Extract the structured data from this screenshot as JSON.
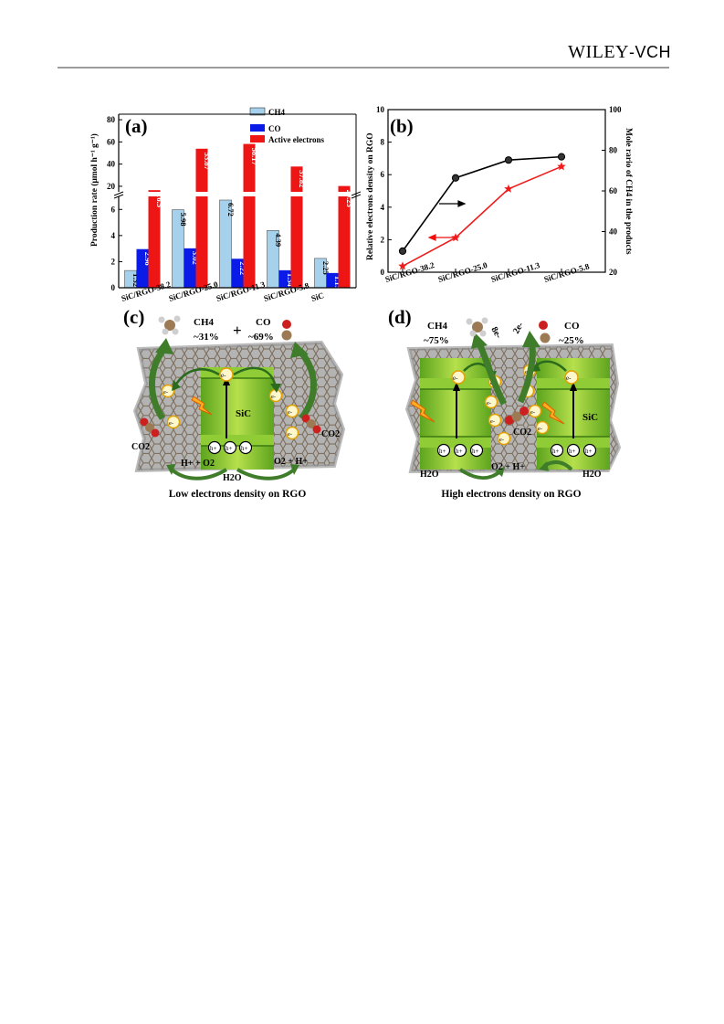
{
  "header": {
    "brand_main": "WILEY",
    "brand_suffix": "-VCH"
  },
  "panel_a": {
    "letter": "(a)",
    "ylabel": "Production rate (μmol h⁻¹ g⁻¹)",
    "legend": [
      "CH4",
      "CO",
      "Active electrons"
    ],
    "colors": {
      "ch4": "#a6d1ec",
      "co": "#0a1be8",
      "electrons": "#ee1515"
    },
    "upper_ticks": [
      "20",
      "40",
      "60",
      "80"
    ],
    "lower_ticks": [
      "0",
      "2",
      "4",
      "6"
    ]
  },
  "panel_b": {
    "letter": "(b)",
    "ylabel_left": "Relative electrons density on RGO",
    "ylabel_right": "Mole rario of CH4 in the products",
    "left_ticks": [
      "0",
      "2",
      "4",
      "6",
      "8",
      "10"
    ],
    "right_ticks": [
      "20",
      "40",
      "60",
      "80",
      "100"
    ]
  },
  "chart_data": [
    {
      "type": "bar",
      "panel": "a",
      "categories": [
        "SiC/RGO-38.2",
        "SiC/RGO-25.0",
        "SiC/RGO-11.3",
        "SiC/RGO-5.8",
        "SiC"
      ],
      "series": [
        {
          "name": "CH4",
          "values": [
            1.32,
            5.98,
            6.72,
            4.39,
            2.25
          ]
        },
        {
          "name": "CO",
          "values": [
            2.96,
            3.02,
            2.22,
            1.34,
            1.13
          ]
        },
        {
          "name": "Active electrons",
          "values": [
            16.5,
            53.87,
            58.17,
            37.82,
            20.25
          ]
        }
      ],
      "labels": {
        "ch4": [
          "1.32",
          "5.98",
          "6.72",
          "4.39",
          "2.25"
        ],
        "co": [
          "2.96",
          "3.02",
          "2.22",
          "1.34",
          "1.13"
        ],
        "electrons": [
          "16.5",
          "53.87",
          "58.17",
          "37.82",
          "20.25"
        ]
      },
      "ylabel": "Production rate (μmol h⁻¹ g⁻¹)",
      "broken_axis": {
        "lower": [
          0,
          7
        ],
        "upper": [
          15,
          85
        ]
      }
    },
    {
      "type": "line",
      "panel": "b",
      "categories": [
        "SiC/RGO-38.2",
        "SiC/RGO-25.0",
        "SiC/RGO-11.3",
        "SiC/RGO-5.8"
      ],
      "series": [
        {
          "axis": "left",
          "marker": "circle",
          "color": "#000000",
          "values": [
            1.3,
            5.8,
            6.9,
            7.1
          ]
        },
        {
          "axis": "right",
          "marker": "star",
          "color": "#ee1c1c",
          "values": [
            23,
            37,
            61,
            72
          ]
        }
      ],
      "ylabel_left": "Relative electrons density on RGO",
      "ylabel_right": "Mole rario of CH4 in the products",
      "ylim_left": [
        0,
        10
      ],
      "ylim_right": [
        20,
        100
      ]
    }
  ],
  "panel_c": {
    "letter": "(c)",
    "ch4": "CH4",
    "ch4_pct": "~31%",
    "plus": "+",
    "co": "CO",
    "co_pct": "~69%",
    "sic": "SiC",
    "co2": "CO2",
    "h_o2": "H+ + O2",
    "o2_h": "O2 + H+",
    "h2o": "H2O",
    "electron": "e-",
    "hole": "h+",
    "caption": "Low electrons density on RGO"
  },
  "panel_d": {
    "letter": "(d)",
    "ch4": "CH4",
    "ch4_pct": "~75%",
    "eight_e": "8e-",
    "two_e": "2e-",
    "co": "CO",
    "co_pct": "~25%",
    "sic": "SiC",
    "co2": "CO2",
    "o2_h": "O2 + H+",
    "h2o": "H2O",
    "electron": "e-",
    "hole": "h+",
    "caption": "High electrons density on RGO"
  }
}
